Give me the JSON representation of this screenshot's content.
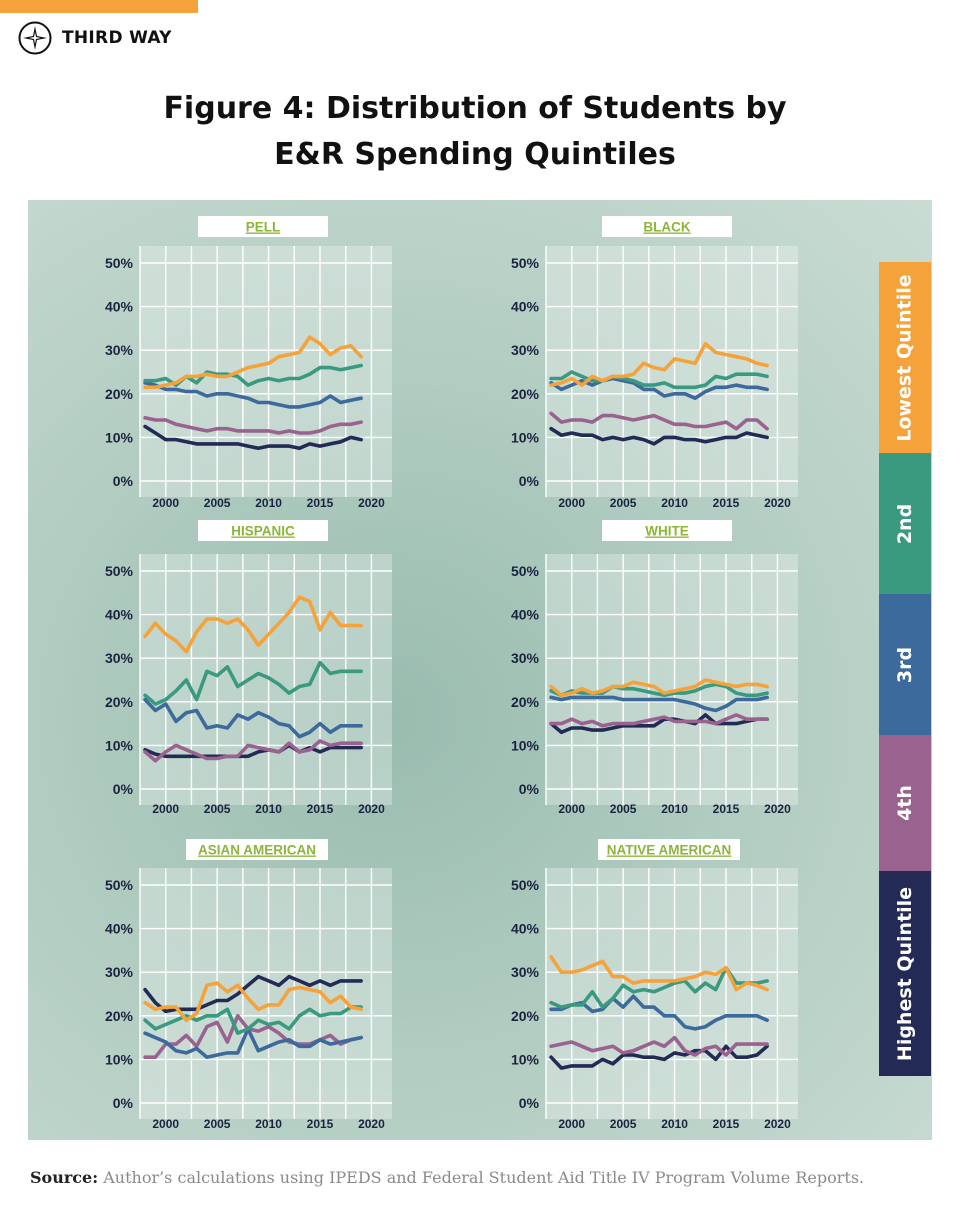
{
  "header": {
    "brand": "THIRD WAY",
    "title_line1": "Figure 4: Distribution of Students by",
    "title_line2": "E&R Spending Quintiles"
  },
  "source": {
    "label": "Source:",
    "text": "Author’s calculations using IPEDS and Federal Student Aid Title IV Program Volume Reports."
  },
  "legend": [
    {
      "label": "Lowest Quintile",
      "color": "#f6a23a"
    },
    {
      "label": "2nd",
      "color": "#3a9a80"
    },
    {
      "label": "3rd",
      "color": "#3d6a9c"
    },
    {
      "label": "4th",
      "color": "#99628f"
    },
    {
      "label": "Highest Quintile",
      "color": "#232a55"
    }
  ],
  "colors": {
    "lowest": "#f6a23a",
    "second": "#3a9a80",
    "third": "#3d6a9c",
    "fourth": "#99628f",
    "highest": "#232a55",
    "title_text": "#8db53a",
    "axis_text": "#1c2340"
  },
  "chart_data": [
    {
      "type": "line",
      "title": "PELL",
      "x": [
        1998,
        1999,
        2000,
        2001,
        2002,
        2003,
        2004,
        2005,
        2006,
        2007,
        2008,
        2009,
        2010,
        2011,
        2012,
        2013,
        2014,
        2015,
        2016,
        2017,
        2018,
        2019
      ],
      "yticks": [
        "0%",
        "10%",
        "20%",
        "30%",
        "40%",
        "50%"
      ],
      "xticks": [
        2000,
        2005,
        2010,
        2015,
        2020
      ],
      "ylim": [
        0,
        50
      ],
      "series": [
        {
          "key": "lowest",
          "values": [
            21.5,
            21.5,
            22,
            22.5,
            24,
            24,
            24.5,
            24,
            24,
            25,
            26,
            26.5,
            27,
            28.5,
            29,
            29.5,
            33,
            31.5,
            29,
            30.5,
            31,
            28.5
          ]
        },
        {
          "key": "second",
          "values": [
            23,
            23,
            23.5,
            22,
            24,
            22.5,
            25,
            24.5,
            24.5,
            24,
            22,
            23,
            23.5,
            23,
            23.5,
            23.5,
            24.5,
            26,
            26,
            25.5,
            26,
            26.5
          ]
        },
        {
          "key": "third",
          "values": [
            22.5,
            22,
            21,
            21,
            20.5,
            20.5,
            19.5,
            20,
            20,
            19.5,
            19,
            18,
            18,
            17.5,
            17,
            17,
            17.5,
            18,
            19.5,
            18,
            18.5,
            19
          ]
        },
        {
          "key": "fourth",
          "values": [
            14.5,
            14,
            14,
            13,
            12.5,
            12,
            11.5,
            12,
            12,
            11.5,
            11.5,
            11.5,
            11.5,
            11,
            11.5,
            11,
            11,
            11.5,
            12.5,
            13,
            13,
            13.5
          ]
        },
        {
          "key": "highest",
          "values": [
            12.5,
            11,
            9.5,
            9.5,
            9,
            8.5,
            8.5,
            8.5,
            8.5,
            8.5,
            8,
            7.5,
            8,
            8,
            8,
            7.5,
            8.5,
            8,
            8.5,
            9,
            10,
            9.5
          ]
        }
      ]
    },
    {
      "type": "line",
      "title": "BLACK",
      "x": [
        1998,
        1999,
        2000,
        2001,
        2002,
        2003,
        2004,
        2005,
        2006,
        2007,
        2008,
        2009,
        2010,
        2011,
        2012,
        2013,
        2014,
        2015,
        2016,
        2017,
        2018,
        2019
      ],
      "yticks": [
        "0%",
        "10%",
        "20%",
        "30%",
        "40%",
        "50%"
      ],
      "xticks": [
        2000,
        2005,
        2010,
        2015,
        2020
      ],
      "ylim": [
        0,
        50
      ],
      "series": [
        {
          "key": "lowest",
          "values": [
            22,
            22.5,
            23.5,
            22,
            24,
            23,
            24,
            24,
            24.5,
            27,
            26,
            25.5,
            28,
            27.5,
            27,
            31.5,
            29.5,
            29,
            28.5,
            28,
            27,
            26.5
          ]
        },
        {
          "key": "second",
          "values": [
            23.5,
            23.5,
            25,
            24,
            23,
            23,
            24,
            23.5,
            23,
            22,
            22,
            22.5,
            21.5,
            21.5,
            21.5,
            22,
            24,
            23.5,
            24.5,
            24.5,
            24.5,
            24
          ]
        },
        {
          "key": "third",
          "values": [
            22.5,
            21,
            22,
            23,
            22,
            23,
            23.5,
            23,
            22.5,
            21,
            21,
            19.5,
            20,
            20,
            19,
            20.5,
            21.5,
            21.5,
            22,
            21.5,
            21.5,
            21
          ]
        },
        {
          "key": "fourth",
          "values": [
            15.5,
            13.5,
            14,
            14,
            13.5,
            15,
            15,
            14.5,
            14,
            14.5,
            15,
            14,
            13,
            13,
            12.5,
            12.5,
            13,
            13.5,
            12,
            14,
            14,
            12
          ]
        },
        {
          "key": "highest",
          "values": [
            12,
            10.5,
            11,
            10.5,
            10.5,
            9.5,
            10,
            9.5,
            10,
            9.5,
            8.5,
            10,
            10,
            9.5,
            9.5,
            9,
            9.5,
            10,
            10,
            11,
            10.5,
            10
          ]
        }
      ]
    },
    {
      "type": "line",
      "title": "HISPANIC",
      "x": [
        1998,
        1999,
        2000,
        2001,
        2002,
        2003,
        2004,
        2005,
        2006,
        2007,
        2008,
        2009,
        2010,
        2011,
        2012,
        2013,
        2014,
        2015,
        2016,
        2017,
        2018,
        2019
      ],
      "yticks": [
        "0%",
        "10%",
        "20%",
        "30%",
        "40%",
        "50%"
      ],
      "xticks": [
        2000,
        2005,
        2010,
        2015,
        2020
      ],
      "ylim": [
        0,
        50
      ],
      "series": [
        {
          "key": "lowest",
          "values": [
            35,
            38,
            35.5,
            34,
            31.5,
            36,
            39,
            39,
            38,
            39,
            36.5,
            33,
            35.5,
            38,
            40.5,
            44,
            43,
            36.5,
            40.5,
            37.5,
            37.5,
            37.5
          ]
        },
        {
          "key": "second",
          "values": [
            21.5,
            19.5,
            20.5,
            22.5,
            25,
            20.5,
            27,
            26,
            28,
            23.5,
            25,
            26.5,
            25.5,
            24,
            22,
            23.5,
            24,
            29,
            26.5,
            27,
            27,
            27
          ]
        },
        {
          "key": "third",
          "values": [
            20.5,
            18,
            19.5,
            15.5,
            17.5,
            18,
            14,
            14.5,
            14,
            17,
            16,
            17.5,
            16.5,
            15,
            14.5,
            12,
            13,
            15,
            13,
            14.5,
            14.5,
            14.5
          ]
        },
        {
          "key": "fourth",
          "values": [
            8.5,
            6.5,
            8.5,
            10,
            9,
            8,
            7,
            7,
            7.5,
            7.5,
            10,
            9.5,
            9,
            8.5,
            10.5,
            8.5,
            9,
            11,
            10,
            10.5,
            10.5,
            10.5
          ]
        },
        {
          "key": "highest",
          "values": [
            9,
            8,
            7.5,
            7.5,
            7.5,
            7.5,
            7.5,
            7.5,
            7.5,
            7.5,
            7.5,
            8.5,
            9,
            8.5,
            10,
            8.5,
            9.5,
            8.5,
            9.5,
            9.5,
            9.5,
            9.5
          ]
        }
      ]
    },
    {
      "type": "line",
      "title": "WHITE",
      "x": [
        1998,
        1999,
        2000,
        2001,
        2002,
        2003,
        2004,
        2005,
        2006,
        2007,
        2008,
        2009,
        2010,
        2011,
        2012,
        2013,
        2014,
        2015,
        2016,
        2017,
        2018,
        2019
      ],
      "yticks": [
        "0%",
        "10%",
        "20%",
        "30%",
        "40%",
        "50%"
      ],
      "xticks": [
        2000,
        2005,
        2010,
        2015,
        2020
      ],
      "ylim": [
        0,
        50
      ],
      "series": [
        {
          "key": "lowest",
          "values": [
            23.5,
            21.5,
            22,
            23,
            22,
            22.5,
            23.5,
            23.5,
            24.5,
            24,
            23.5,
            22,
            22.5,
            23,
            23.5,
            25,
            24.5,
            24,
            23.5,
            24,
            24,
            23.5
          ]
        },
        {
          "key": "second",
          "values": [
            22.5,
            21.5,
            22.5,
            22,
            22,
            22,
            23.5,
            23,
            23,
            22.5,
            22,
            21.5,
            22,
            22,
            22.5,
            23.5,
            24,
            23.5,
            22,
            21.5,
            21.5,
            22
          ]
        },
        {
          "key": "third",
          "values": [
            21,
            20.5,
            21,
            21,
            21,
            21,
            21,
            20.5,
            20.5,
            20.5,
            20.5,
            20.5,
            20.5,
            20,
            19.5,
            18.5,
            18,
            19,
            20.5,
            20.5,
            20.5,
            21
          ]
        },
        {
          "key": "fourth",
          "values": [
            15,
            15,
            16,
            15,
            15.5,
            14.5,
            15,
            15,
            15,
            15.5,
            16,
            16.5,
            15.5,
            15.5,
            15.5,
            15.5,
            15,
            16,
            17,
            16,
            16,
            16
          ]
        },
        {
          "key": "highest",
          "values": [
            15,
            13,
            14,
            14,
            13.5,
            13.5,
            14,
            14.5,
            14.5,
            14.5,
            14.5,
            16,
            16,
            15.5,
            15,
            17,
            15,
            15,
            15,
            15.5,
            16,
            16
          ]
        }
      ]
    },
    {
      "type": "line",
      "title": "ASIAN AMERICAN",
      "x": [
        1998,
        1999,
        2000,
        2001,
        2002,
        2003,
        2004,
        2005,
        2006,
        2007,
        2008,
        2009,
        2010,
        2011,
        2012,
        2013,
        2014,
        2015,
        2016,
        2017,
        2018,
        2019
      ],
      "yticks": [
        "0%",
        "10%",
        "20%",
        "30%",
        "40%",
        "50%"
      ],
      "xticks": [
        2000,
        2005,
        2010,
        2015,
        2020
      ],
      "ylim": [
        0,
        50
      ],
      "series": [
        {
          "key": "lowest",
          "values": [
            23,
            21.5,
            22,
            22,
            19,
            20.5,
            27,
            27.5,
            25.5,
            27,
            24,
            21.5,
            22.5,
            22.5,
            26,
            26.5,
            26,
            25.5,
            23,
            24.5,
            22,
            21.5
          ]
        },
        {
          "key": "second",
          "values": [
            19,
            17,
            18,
            19,
            20,
            19,
            20,
            20,
            21.5,
            16,
            17,
            19,
            18,
            18.5,
            17,
            20,
            21.5,
            20,
            20.5,
            20.5,
            22,
            22
          ]
        },
        {
          "key": "third",
          "values": [
            16,
            15,
            14,
            12,
            11.5,
            12.5,
            10.5,
            11,
            11.5,
            11.5,
            17,
            12,
            13,
            14,
            14.5,
            13,
            13,
            14.5,
            13.5,
            14,
            14.5,
            15
          ]
        },
        {
          "key": "fourth",
          "values": [
            10.5,
            10.5,
            13.5,
            13.5,
            15.5,
            13,
            17.5,
            18.5,
            14,
            20,
            17,
            16.5,
            17.5,
            16,
            14,
            13.5,
            13.5,
            14.5,
            15.5,
            13.5,
            14.5,
            15
          ]
        },
        {
          "key": "highest",
          "values": [
            26,
            23,
            21,
            21.5,
            21.5,
            21.5,
            22.5,
            23.5,
            23.5,
            25,
            27,
            29,
            28,
            27,
            29,
            28,
            27,
            28,
            27,
            28,
            28,
            28
          ]
        }
      ]
    },
    {
      "type": "line",
      "title": "NATIVE AMERICAN",
      "x": [
        1998,
        1999,
        2000,
        2001,
        2002,
        2003,
        2004,
        2005,
        2006,
        2007,
        2008,
        2009,
        2010,
        2011,
        2012,
        2013,
        2014,
        2015,
        2016,
        2017,
        2018,
        2019
      ],
      "yticks": [
        "0%",
        "10%",
        "20%",
        "30%",
        "40%",
        "50%"
      ],
      "xticks": [
        2000,
        2005,
        2010,
        2015,
        2020
      ],
      "ylim": [
        0,
        50
      ],
      "series": [
        {
          "key": "lowest",
          "values": [
            33.5,
            30,
            30,
            30.5,
            31.5,
            32.5,
            29,
            29,
            27.5,
            28,
            28,
            28,
            28,
            28.5,
            29,
            30,
            29.5,
            31,
            26,
            27.5,
            27,
            26
          ]
        },
        {
          "key": "second",
          "values": [
            23,
            22,
            22.5,
            22.5,
            25.5,
            22,
            24,
            27,
            25.5,
            26,
            25.5,
            26.5,
            27.5,
            28,
            25.5,
            27.5,
            26,
            31,
            27.5,
            27.5,
            27.5,
            28
          ]
        },
        {
          "key": "third",
          "values": [
            21.5,
            21.5,
            22.5,
            23,
            21,
            21.5,
            24,
            22,
            24.5,
            22,
            22,
            20,
            20,
            17.5,
            17,
            17.5,
            19,
            20,
            20,
            20,
            20,
            19
          ]
        },
        {
          "key": "fourth",
          "values": [
            13,
            13.5,
            14,
            13,
            12,
            12.5,
            13,
            11.5,
            12,
            13,
            14,
            13,
            15,
            12,
            11,
            12.5,
            13,
            11,
            13.5,
            13.5,
            13.5,
            13.5
          ]
        },
        {
          "key": "highest",
          "values": [
            10.5,
            8,
            8.5,
            8.5,
            8.5,
            10,
            9,
            11,
            11,
            10.5,
            10.5,
            10,
            11.5,
            11,
            12,
            12,
            10,
            13,
            10.5,
            10.5,
            11,
            13
          ]
        }
      ]
    }
  ]
}
